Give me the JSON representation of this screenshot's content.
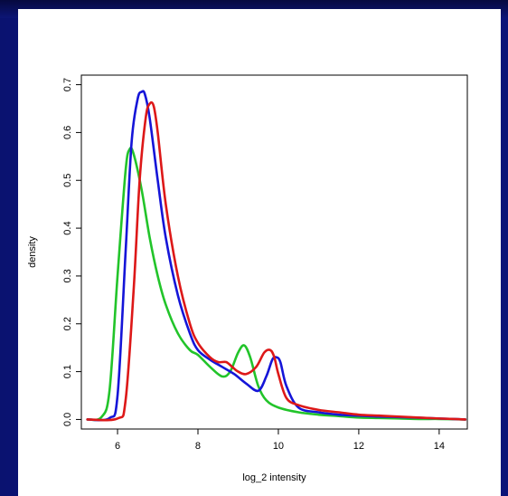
{
  "chart_data": {
    "type": "line",
    "title": "",
    "xlabel": "log_2 intensity",
    "ylabel": "density",
    "xlim": [
      5.1,
      14.7
    ],
    "ylim": [
      -0.02,
      0.72
    ],
    "xticks": [
      6,
      8,
      10,
      12,
      14
    ],
    "yticks": [
      0.0,
      0.1,
      0.2,
      0.3,
      0.4,
      0.5,
      0.6,
      0.7
    ],
    "xtick_labels": [
      "6",
      "8",
      "10",
      "12",
      "14"
    ],
    "ytick_labels": [
      "0.0",
      "0.1",
      "0.2",
      "0.3",
      "0.4",
      "0.5",
      "0.6",
      "0.7"
    ],
    "grid": false,
    "series": [
      {
        "color": "#22c42a",
        "x": [
          5.25,
          5.6,
          5.8,
          6.0,
          6.2,
          6.3,
          6.4,
          6.6,
          6.8,
          7.0,
          7.2,
          7.5,
          7.8,
          8.0,
          8.3,
          8.6,
          8.8,
          9.0,
          9.15,
          9.3,
          9.5,
          9.7,
          10.0,
          10.5,
          11.0,
          11.5,
          12.0,
          12.5,
          13.0,
          13.5,
          14.0,
          14.65
        ],
        "y": [
          0.0,
          0.005,
          0.06,
          0.3,
          0.52,
          0.565,
          0.555,
          0.48,
          0.38,
          0.3,
          0.24,
          0.18,
          0.145,
          0.135,
          0.11,
          0.09,
          0.1,
          0.14,
          0.155,
          0.13,
          0.07,
          0.04,
          0.025,
          0.015,
          0.01,
          0.007,
          0.004,
          0.003,
          0.002,
          0.001,
          0.001,
          0.0
        ]
      },
      {
        "color": "#1515d8",
        "x": [
          5.25,
          5.8,
          6.0,
          6.2,
          6.35,
          6.5,
          6.6,
          6.68,
          6.8,
          7.0,
          7.2,
          7.5,
          7.8,
          8.0,
          8.3,
          8.6,
          8.9,
          9.2,
          9.5,
          9.7,
          9.85,
          9.95,
          10.05,
          10.2,
          10.5,
          11.0,
          11.5,
          12.0,
          12.5,
          13.0,
          14.0,
          14.65
        ],
        "y": [
          0.0,
          0.003,
          0.05,
          0.35,
          0.58,
          0.67,
          0.685,
          0.68,
          0.63,
          0.5,
          0.38,
          0.26,
          0.18,
          0.145,
          0.125,
          0.11,
          0.095,
          0.075,
          0.06,
          0.09,
          0.125,
          0.13,
          0.12,
          0.07,
          0.025,
          0.015,
          0.01,
          0.008,
          0.006,
          0.005,
          0.002,
          0.0
        ]
      },
      {
        "color": "#dd1818",
        "x": [
          5.25,
          6.0,
          6.2,
          6.4,
          6.55,
          6.7,
          6.8,
          6.9,
          7.0,
          7.2,
          7.5,
          7.8,
          8.0,
          8.3,
          8.5,
          8.7,
          8.85,
          9.0,
          9.2,
          9.45,
          9.65,
          9.8,
          9.9,
          10.0,
          10.2,
          10.5,
          11.0,
          11.5,
          12.0,
          12.5,
          13.0,
          14.0,
          14.65
        ],
        "y": [
          0.0,
          0.002,
          0.04,
          0.27,
          0.5,
          0.63,
          0.66,
          0.655,
          0.6,
          0.45,
          0.3,
          0.2,
          0.16,
          0.13,
          0.12,
          0.12,
          0.11,
          0.1,
          0.095,
          0.11,
          0.14,
          0.145,
          0.13,
          0.095,
          0.045,
          0.03,
          0.02,
          0.015,
          0.01,
          0.008,
          0.006,
          0.002,
          0.0
        ]
      }
    ]
  }
}
